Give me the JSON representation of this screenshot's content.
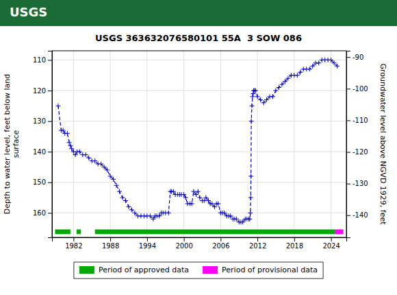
{
  "chart_data": {
    "type": "line",
    "title": "USGS 363632076580101 55A  3 SOW 086",
    "annotations": [
      "USGS"
    ],
    "ylabel": "Depth to water level, feet below land\nsurface",
    "y2label": "Groundwater level above NGVD 1929, feet",
    "xlim": [
      1978.5,
      2026.5
    ],
    "xticks": [
      1982,
      1988,
      1994,
      2000,
      2006,
      2012,
      2018,
      2024
    ],
    "ylim": [
      168,
      107
    ],
    "yticks": [
      110,
      120,
      130,
      140,
      150,
      160
    ],
    "y2lim": [
      -147,
      -88
    ],
    "y2ticks": [
      -90,
      -100,
      -110,
      -120,
      -130,
      -140
    ],
    "grid": true,
    "legend": "bottom",
    "x": [
      1979.5,
      1980.0,
      1980.3,
      1980.6,
      1981.0,
      1981.3,
      1981.5,
      1981.7,
      1982.0,
      1982.3,
      1982.6,
      1983.0,
      1983.5,
      1984.0,
      1984.5,
      1985.0,
      1985.5,
      1986.0,
      1986.5,
      1987.0,
      1987.5,
      1988.0,
      1988.5,
      1989.0,
      1989.5,
      1990.0,
      1990.5,
      1991.0,
      1991.5,
      1992.0,
      1992.5,
      1993.0,
      1993.5,
      1994.0,
      1994.5,
      1995.0,
      1995.3,
      1995.6,
      1996.0,
      1996.3,
      1996.6,
      1997.0,
      1997.5,
      1997.8,
      1998.0,
      1998.3,
      1998.6,
      1999.0,
      1999.3,
      1999.6,
      2000.0,
      2000.3,
      2000.6,
      2001.0,
      2001.3,
      2001.6,
      2002.0,
      2002.3,
      2002.6,
      2003.0,
      2003.3,
      2003.6,
      2004.0,
      2004.3,
      2004.6,
      2005.0,
      2005.3,
      2005.6,
      2006.0,
      2006.3,
      2006.6,
      2007.0,
      2007.3,
      2007.6,
      2008.0,
      2008.3,
      2008.6,
      2009.0,
      2009.3,
      2009.6,
      2010.0,
      2010.3,
      2010.6,
      2010.75,
      2010.85,
      2010.9,
      2010.95,
      2011.0,
      2011.1,
      2011.2,
      2011.3,
      2011.4,
      2011.5,
      2011.7,
      2012.0,
      2012.5,
      2013.0,
      2013.5,
      2014.0,
      2014.5,
      2015.0,
      2015.5,
      2016.0,
      2016.5,
      2017.0,
      2017.5,
      2018.0,
      2018.5,
      2019.0,
      2019.5,
      2020.0,
      2020.5,
      2021.0,
      2021.5,
      2022.0,
      2022.5,
      2023.0,
      2023.5,
      2024.0,
      2024.5,
      2025.0
    ],
    "series": [
      {
        "color": "#0000CC",
        "marker": "plus",
        "line_style": "dashed",
        "values": [
          125,
          133,
          133,
          134,
          134,
          137,
          138,
          139,
          140,
          141,
          140,
          140,
          141,
          141,
          142,
          143,
          143,
          144,
          144,
          145,
          146,
          148,
          149,
          151,
          153,
          155,
          156,
          158,
          159,
          160,
          161,
          161,
          161,
          161,
          161,
          162,
          161,
          161,
          161,
          160,
          160,
          160,
          160,
          153,
          153,
          153,
          154,
          154,
          154,
          154,
          154,
          155,
          157,
          157,
          157,
          153,
          154,
          153,
          155,
          156,
          156,
          155,
          156,
          157,
          157,
          158,
          157,
          157,
          160,
          160,
          160,
          161,
          161,
          161,
          162,
          162,
          162,
          163,
          163,
          163,
          162,
          162,
          162,
          162,
          160,
          155,
          148,
          130,
          125,
          122,
          121,
          120,
          120,
          120,
          122,
          123,
          124,
          123,
          122,
          122,
          120,
          119,
          118,
          117,
          116,
          115,
          115,
          115,
          114,
          113,
          113,
          113,
          112,
          111,
          111,
          110,
          110,
          110,
          110,
          111,
          112
        ]
      }
    ],
    "periods": [
      {
        "name": "Period of approved data",
        "color": "#00AA00",
        "ranges": [
          [
            1979.0,
            1981.5
          ],
          [
            1982.5,
            1983.2
          ],
          [
            1985.5,
            2024.7
          ]
        ]
      },
      {
        "name": "Period of provisional data",
        "color": "#FF00FF",
        "ranges": [
          [
            2024.7,
            2026.0
          ]
        ]
      }
    ]
  }
}
